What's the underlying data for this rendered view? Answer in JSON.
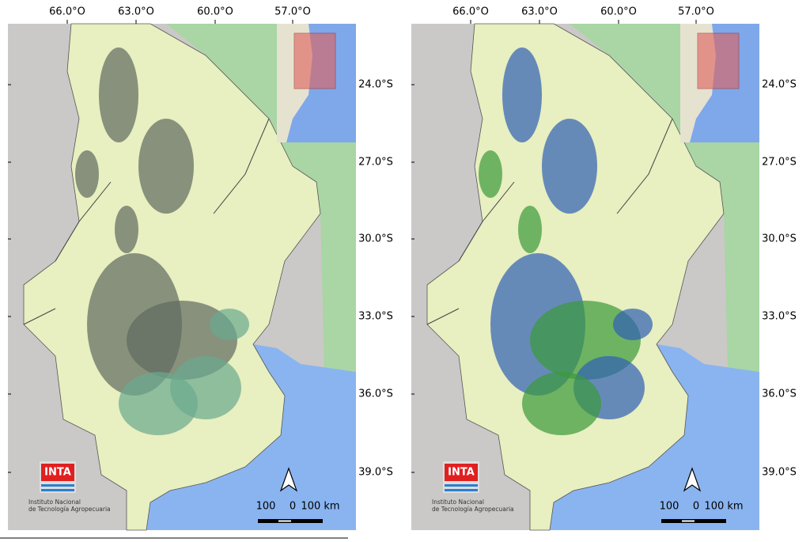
{
  "panels": [
    {
      "lon_labels": [
        "66.0°O",
        "63.0°O",
        "60.0°O",
        "57.0°O"
      ],
      "lat_labels": [
        "24.0°S",
        "27.0°S",
        "30.0°S",
        "33.0°S",
        "36.0°S",
        "39.0°S"
      ],
      "logo": "INTA",
      "institute": [
        "Instituto Nacional",
        "de Tecnología Agropecuaria"
      ],
      "scale_labels": [
        "100",
        "0",
        "100 km"
      ]
    },
    {
      "lon_labels": [
        "66.0°O",
        "63.0°O",
        "60.0°O",
        "57.0°O"
      ],
      "lat_labels": [
        "24.0°S",
        "27.0°S",
        "30.0°S",
        "33.0°S",
        "36.0°S",
        "39.0°S"
      ],
      "logo": "INTA",
      "institute": [
        "Instituto Nacional",
        "de Tecnología Agropecuaria"
      ],
      "scale_labels": [
        "100",
        "0",
        "100 km"
      ]
    }
  ]
}
